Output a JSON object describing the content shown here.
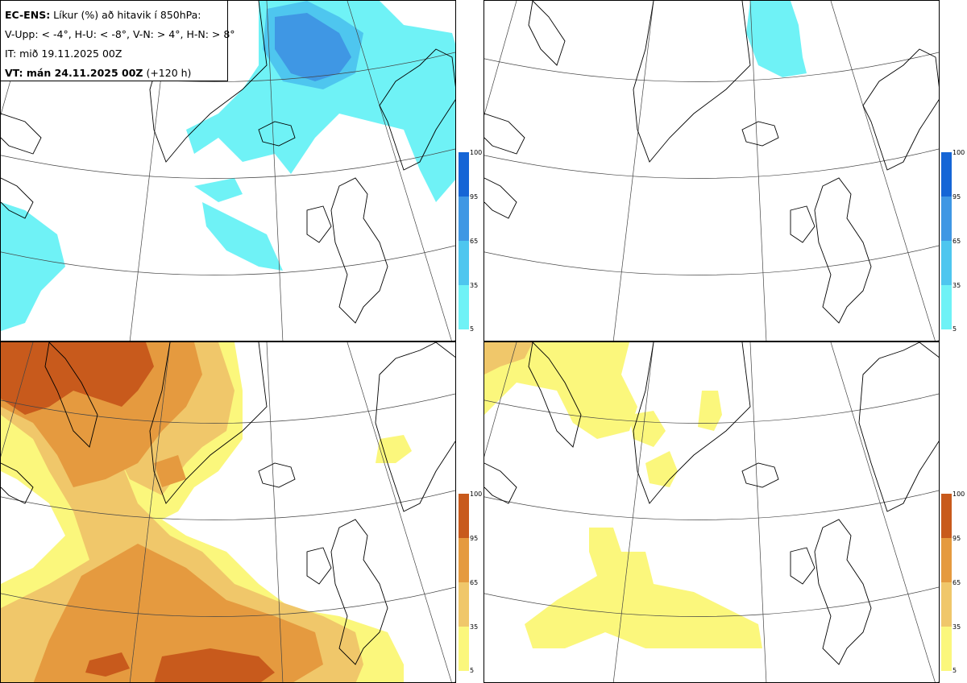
{
  "header": {
    "title_bold": "EC-ENS:",
    "title_rest": " Líkur (%) að hitavik í 850hPa:",
    "legend_line": "V-Upp: < -4°, H-U: < -8°, V-N: > 4°, H-N: > 8°",
    "init_time": "IT: mið 19.11.2025 00Z",
    "valid_time_bold": "VT: mán 24.11.2025 00Z",
    "valid_time_rest": " (+120 h)"
  },
  "panels": [
    {
      "id": "cold-4",
      "quantity": "P(anomaly < -4°)"
    },
    {
      "id": "cold-8",
      "quantity": "P(anomaly < -8°)"
    },
    {
      "id": "warm-4",
      "quantity": "P(anomaly > 4°)"
    },
    {
      "id": "warm-8",
      "quantity": "P(anomaly > 8°)"
    }
  ],
  "colorbars": {
    "ticks": [
      "100",
      "95",
      "65",
      "35",
      "5"
    ],
    "cold_colors": [
      "#1565d6",
      "#3f97e4",
      "#4ec6ef",
      "#6ff2f6"
    ],
    "warm_colors": [
      "#c85a1c",
      "#e59a3f",
      "#f0c76a",
      "#fbf77c"
    ]
  },
  "map": {
    "land_outline_color": "#000000",
    "graticule_color": "#444444",
    "background": "#ffffff"
  }
}
